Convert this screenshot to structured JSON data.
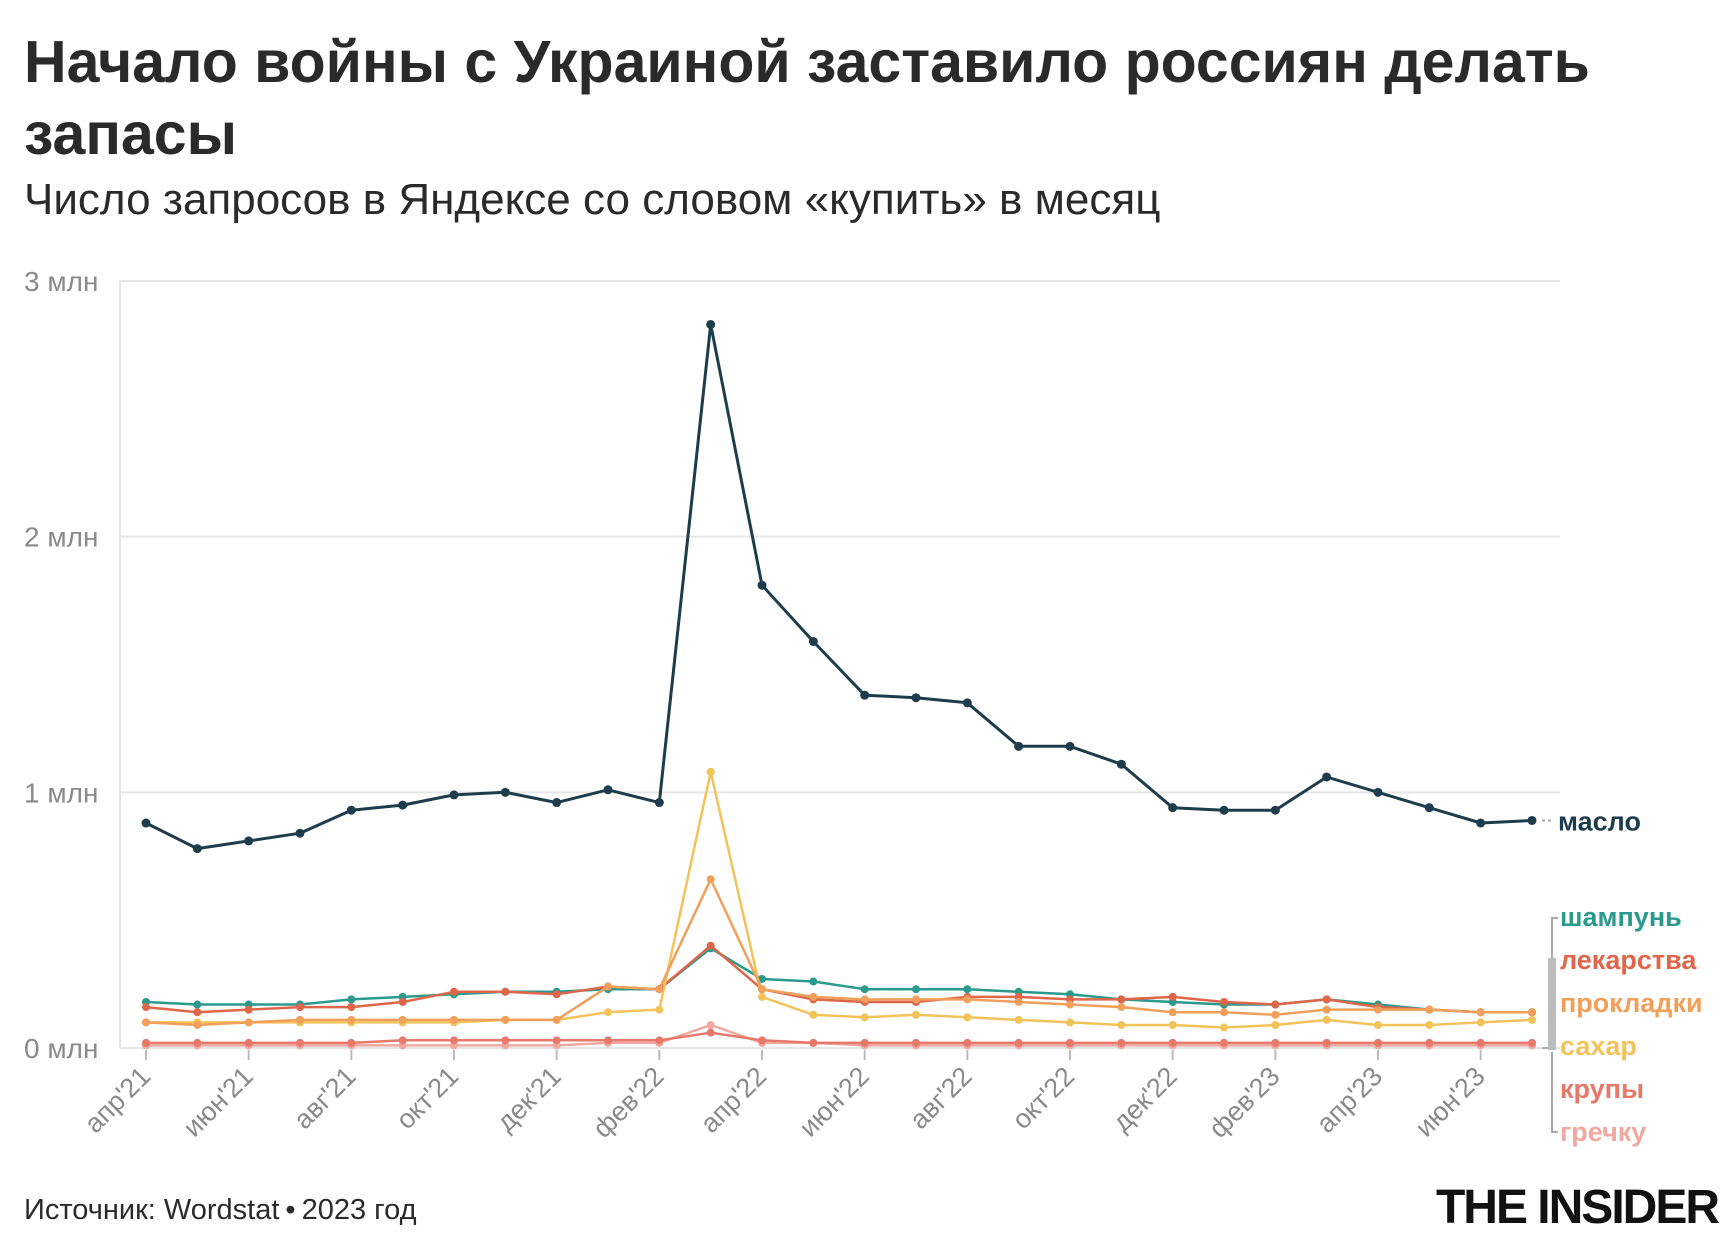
{
  "title": "Начало войны с Украиной заставило россиян делать запасы",
  "subtitle": "Число запросов в Яндексе со словом «купить» в месяц",
  "footer": {
    "source": "Источник: Wordstat",
    "separator": "•",
    "year": "2023 год"
  },
  "logo": "THE INSIDER",
  "chart_data": {
    "type": "line",
    "ylim": [
      0,
      3
    ],
    "y_ticks": [
      {
        "value": 0,
        "label": "0 млн"
      },
      {
        "value": 1,
        "label": "1 млн"
      },
      {
        "value": 2,
        "label": "2 млн"
      },
      {
        "value": 3,
        "label": "3 млн"
      }
    ],
    "x": [
      "апр'21",
      "май'21",
      "июн'21",
      "июл'21",
      "авг'21",
      "сен'21",
      "окт'21",
      "ноя'21",
      "дек'21",
      "янв'22",
      "фев'22",
      "мар'22",
      "апр'22",
      "май'22",
      "июн'22",
      "июл'22",
      "авг'22",
      "сен'22",
      "окт'22",
      "ноя'22",
      "дек'22",
      "янв'23",
      "фев'23",
      "мар'23",
      "апр'23",
      "май'23",
      "июн'23",
      "июл'23"
    ],
    "x_tick_labels": [
      "апр'21",
      "июн'21",
      "авг'21",
      "окт'21",
      "дек'21",
      "фев'22",
      "апр'22",
      "июн'22",
      "авг'22",
      "окт'22",
      "дек'22",
      "фев'23",
      "апр'23",
      "июн'23"
    ],
    "grid": true,
    "series": [
      {
        "name": "масло",
        "color": "#1d3d4c",
        "values": [
          0.88,
          0.78,
          0.81,
          0.84,
          0.93,
          0.95,
          0.99,
          1.0,
          0.96,
          1.01,
          0.96,
          2.83,
          1.81,
          1.59,
          1.38,
          1.37,
          1.35,
          1.18,
          1.18,
          1.11,
          0.94,
          0.93,
          0.93,
          1.06,
          1.0,
          0.94,
          0.88,
          0.89
        ]
      },
      {
        "name": "прокладки",
        "color": "#f0a05a",
        "values": [
          0.1,
          0.09,
          0.1,
          0.11,
          0.11,
          0.11,
          0.11,
          0.11,
          0.11,
          0.24,
          0.23,
          0.66,
          0.23,
          0.2,
          0.19,
          0.19,
          0.19,
          0.18,
          0.17,
          0.16,
          0.14,
          0.14,
          0.13,
          0.15,
          0.15,
          0.15,
          0.14,
          0.14
        ]
      },
      {
        "name": "сахар",
        "color": "#f2c35a",
        "values": [
          0.1,
          0.1,
          0.1,
          0.1,
          0.1,
          0.1,
          0.1,
          0.11,
          0.11,
          0.14,
          0.15,
          1.08,
          0.2,
          0.13,
          0.12,
          0.13,
          0.12,
          0.11,
          0.1,
          0.09,
          0.09,
          0.08,
          0.09,
          0.11,
          0.09,
          0.09,
          0.1,
          0.11
        ]
      },
      {
        "name": "лекарства",
        "color": "#e0664a",
        "values": [
          0.16,
          0.14,
          0.15,
          0.16,
          0.16,
          0.18,
          0.22,
          0.22,
          0.21,
          0.24,
          0.23,
          0.4,
          0.23,
          0.19,
          0.18,
          0.18,
          0.2,
          0.2,
          0.19,
          0.19,
          0.2,
          0.18,
          0.17,
          0.19,
          0.16,
          0.15,
          0.14,
          0.14
        ]
      },
      {
        "name": "шампунь",
        "color": "#2a9a8c",
        "values": [
          0.18,
          0.17,
          0.17,
          0.17,
          0.19,
          0.2,
          0.21,
          0.22,
          0.22,
          0.23,
          0.23,
          0.39,
          0.27,
          0.26,
          0.23,
          0.23,
          0.23,
          0.22,
          0.21,
          0.19,
          0.18,
          0.17,
          0.17,
          0.19,
          0.17,
          0.15,
          0.14,
          0.14
        ]
      },
      {
        "name": "крупы",
        "color": "#e8786a",
        "values": [
          0.02,
          0.02,
          0.02,
          0.02,
          0.02,
          0.03,
          0.03,
          0.03,
          0.03,
          0.03,
          0.03,
          0.06,
          0.03,
          0.02,
          0.02,
          0.02,
          0.02,
          0.02,
          0.02,
          0.02,
          0.02,
          0.02,
          0.02,
          0.02,
          0.02,
          0.02,
          0.02,
          0.02
        ]
      },
      {
        "name": "гречку",
        "color": "#f0a8a0",
        "values": [
          0.01,
          0.01,
          0.01,
          0.01,
          0.01,
          0.01,
          0.01,
          0.01,
          0.01,
          0.02,
          0.02,
          0.09,
          0.02,
          0.02,
          0.01,
          0.01,
          0.01,
          0.01,
          0.01,
          0.01,
          0.01,
          0.01,
          0.01,
          0.01,
          0.01,
          0.01,
          0.01,
          0.01
        ]
      }
    ],
    "legend": {
      "placement": "right",
      "primary": {
        "name": "масло",
        "color": "#1d3d4c"
      },
      "group": [
        {
          "name": "шампунь",
          "color": "#2a9a8c"
        },
        {
          "name": "лекарства",
          "color": "#e0664a"
        },
        {
          "name": "прокладки",
          "color": "#f0a05a"
        },
        {
          "name": "сахар",
          "color": "#f2c35a"
        },
        {
          "name": "крупы",
          "color": "#e8786a"
        },
        {
          "name": "гречку",
          "color": "#f0a8a0"
        }
      ]
    }
  }
}
